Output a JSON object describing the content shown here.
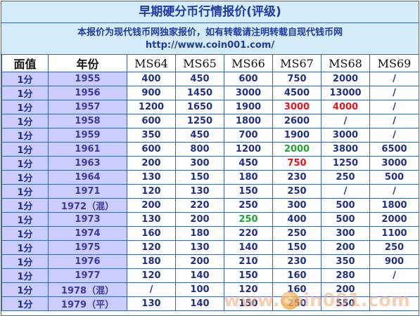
{
  "title": "早期硬分币行情报价(评级)",
  "notice": {
    "line1": "本报价为现代钱币网独家报价，如有转载请注明转载自现代钱币网",
    "line2": "http://www.coin001.com/"
  },
  "watermark": "www.coin001.com",
  "columns": [
    "面值",
    "年份",
    "MS64",
    "MS65",
    "MS66",
    "MS67",
    "MS68",
    "MS69"
  ],
  "colors": {
    "red": "#e8141a",
    "green": "#1aa52e",
    "default": "#1f2f8a"
  },
  "rows": [
    {
      "denom": "1分",
      "year": "1955",
      "vals": [
        "400",
        "450",
        "600",
        "750",
        "2000",
        "/"
      ]
    },
    {
      "denom": "1分",
      "year": "1956",
      "vals": [
        "900",
        "1450",
        "3000",
        "4500",
        "13000",
        "/"
      ]
    },
    {
      "denom": "1分",
      "year": "1957",
      "vals": [
        "1200",
        "1650",
        "1900",
        "3000",
        "4000",
        "/"
      ],
      "colors": {
        "3": "red",
        "4": "red"
      }
    },
    {
      "denom": "1分",
      "year": "1958",
      "vals": [
        "600",
        "1250",
        "1800",
        "2600",
        "/",
        "/"
      ]
    },
    {
      "denom": "1分",
      "year": "1959",
      "vals": [
        "350",
        "450",
        "700",
        "1900",
        "3000",
        "/"
      ]
    },
    {
      "denom": "1分",
      "year": "1961",
      "vals": [
        "600",
        "800",
        "1200",
        "2000",
        "3800",
        "6500"
      ],
      "colors": {
        "3": "green"
      }
    },
    {
      "denom": "1分",
      "year": "1963",
      "vals": [
        "200",
        "300",
        "450",
        "750",
        "1250",
        "3000"
      ],
      "colors": {
        "3": "red"
      }
    },
    {
      "denom": "1分",
      "year": "1964",
      "vals": [
        "130",
        "150",
        "180",
        "230",
        "250",
        "500"
      ]
    },
    {
      "denom": "1分",
      "year": "1971",
      "vals": [
        "120",
        "130",
        "150",
        "250",
        "/",
        "/"
      ]
    },
    {
      "denom": "1分",
      "year": "1972（混）",
      "vals": [
        "200",
        "220",
        "250",
        "300",
        "500",
        "1800"
      ]
    },
    {
      "denom": "1分",
      "year": "1973",
      "vals": [
        "130",
        "200",
        "250",
        "400",
        "500",
        "2000"
      ],
      "colors": {
        "2": "green"
      }
    },
    {
      "denom": "1分",
      "year": "1974",
      "vals": [
        "160",
        "180",
        "220",
        "250",
        "300",
        "1100"
      ]
    },
    {
      "denom": "1分",
      "year": "1975",
      "vals": [
        "120",
        "130",
        "140",
        "150",
        "200",
        "250"
      ]
    },
    {
      "denom": "1分",
      "year": "1976",
      "vals": [
        "180",
        "200",
        "210",
        "230",
        "350",
        "900"
      ]
    },
    {
      "denom": "1分",
      "year": "1977",
      "vals": [
        "120",
        "140",
        "150",
        "160",
        "280",
        "/"
      ]
    },
    {
      "denom": "1分",
      "year": "1978（混）",
      "vals": [
        "/",
        "100",
        "120",
        "160",
        "200",
        ""
      ]
    },
    {
      "denom": "1分",
      "year": "1979（平）",
      "vals": [
        "130",
        "140",
        "150",
        "250",
        "550",
        ""
      ]
    }
  ]
}
